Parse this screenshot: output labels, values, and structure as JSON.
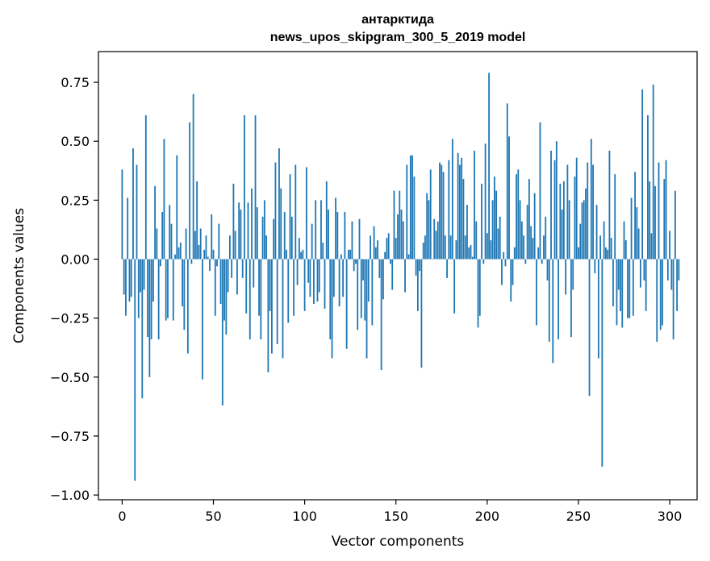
{
  "chart_data": {
    "type": "bar",
    "title": "антарктида",
    "subtitle": "news_upos_skipgram_300_5_2019 model",
    "xlabel": "Vector components",
    "ylabel": "Components values",
    "xlim": [
      -13,
      315
    ],
    "ylim": [
      -1.02,
      0.88
    ],
    "xticks": [
      0,
      50,
      100,
      150,
      200,
      250,
      300
    ],
    "xtick_labels": [
      "0",
      "50",
      "100",
      "150",
      "200",
      "250",
      "300"
    ],
    "yticks": [
      -1.0,
      -0.75,
      -0.5,
      -0.25,
      0.0,
      0.25,
      0.5,
      0.75
    ],
    "ytick_labels": [
      "−1.00",
      "−0.75",
      "−0.50",
      "−0.25",
      "0.00",
      "0.25",
      "0.50",
      "0.75"
    ],
    "grid": false,
    "color": "#1f77b4",
    "values": [
      0.38,
      -0.15,
      -0.24,
      0.26,
      -0.18,
      -0.16,
      0.47,
      -0.94,
      0.4,
      -0.25,
      -0.14,
      -0.59,
      -0.13,
      0.61,
      -0.33,
      -0.5,
      -0.34,
      -0.18,
      0.31,
      0.13,
      -0.34,
      -0.03,
      0.2,
      0.51,
      -0.26,
      -0.25,
      0.23,
      0.15,
      -0.26,
      0.02,
      0.44,
      0.05,
      0.07,
      -0.2,
      -0.3,
      0.13,
      -0.4,
      0.58,
      -0.02,
      0.7,
      0.12,
      0.33,
      0.06,
      0.13,
      -0.51,
      0.04,
      0.1,
      0.01,
      -0.05,
      0.19,
      0.04,
      -0.24,
      -0.03,
      0.15,
      -0.19,
      -0.62,
      -0.26,
      -0.32,
      -0.14,
      0.1,
      -0.08,
      0.32,
      0.12,
      -0.15,
      0.24,
      0.21,
      -0.08,
      0.61,
      -0.23,
      0.24,
      -0.34,
      0.3,
      -0.12,
      0.61,
      0.22,
      -0.24,
      -0.34,
      0.18,
      0.25,
      0.1,
      -0.48,
      -0.22,
      -0.4,
      0.17,
      0.41,
      -0.36,
      0.47,
      0.3,
      -0.42,
      0.2,
      0.04,
      -0.27,
      0.36,
      0.18,
      -0.24,
      0.4,
      -0.11,
      0.09,
      0.03,
      0.04,
      -0.22,
      0.39,
      -0.1,
      -0.16,
      0.15,
      -0.19,
      0.25,
      -0.18,
      -0.14,
      0.25,
      0.07,
      -0.21,
      0.33,
      0.21,
      -0.34,
      -0.42,
      -0.16,
      0.26,
      0.2,
      -0.2,
      0.02,
      -0.16,
      0.2,
      -0.38,
      0.04,
      0.04,
      0.16,
      -0.05,
      -0.02,
      -0.3,
      0.17,
      -0.25,
      -0.09,
      -0.26,
      -0.42,
      -0.18,
      0.1,
      -0.28,
      0.14,
      0.05,
      0.08,
      -0.08,
      -0.47,
      -0.17,
      0.03,
      0.09,
      0.11,
      -0.02,
      -0.13,
      0.29,
      0.09,
      0.19,
      0.29,
      0.21,
      0.16,
      -0.14,
      0.4,
      0.02,
      0.44,
      0.44,
      0.35,
      -0.07,
      -0.22,
      -0.05,
      -0.46,
      0.07,
      0.1,
      0.28,
      0.25,
      0.38,
      0.0,
      0.17,
      0.12,
      0.16,
      0.41,
      0.4,
      0.37,
      0.1,
      -0.08,
      0.42,
      0.1,
      0.51,
      -0.23,
      0.08,
      0.45,
      0.4,
      0.43,
      0.34,
      0.1,
      0.23,
      0.05,
      0.06,
      0.01,
      0.46,
      0.16,
      -0.29,
      -0.24,
      0.32,
      -0.02,
      0.49,
      0.11,
      0.79,
      0.08,
      0.25,
      0.35,
      0.29,
      0.13,
      0.18,
      -0.11,
      0.03,
      -0.03,
      0.66,
      0.52,
      -0.18,
      -0.11,
      0.05,
      0.36,
      0.38,
      0.25,
      0.16,
      0.1,
      -0.02,
      0.23,
      0.34,
      0.14,
      0.09,
      0.28,
      -0.28,
      0.05,
      0.58,
      -0.02,
      0.1,
      0.18,
      -0.09,
      -0.35,
      0.46,
      -0.44,
      0.42,
      0.5,
      -0.34,
      0.32,
      0.21,
      0.33,
      -0.15,
      0.4,
      0.25,
      -0.33,
      -0.13,
      0.35,
      0.43,
      0.05,
      0.15,
      0.24,
      0.25,
      0.3,
      0.41,
      -0.58,
      0.51,
      0.4,
      -0.06,
      0.23,
      -0.42,
      0.1,
      -0.88,
      0.16,
      0.05,
      0.04,
      0.46,
      0.09,
      -0.2,
      0.36,
      -0.28,
      -0.13,
      -0.22,
      -0.29,
      0.16,
      0.08,
      -0.25,
      -0.25,
      0.26,
      -0.24,
      0.37,
      0.22,
      0.13,
      -0.12,
      0.72,
      -0.09,
      -0.22,
      0.61,
      0.33,
      0.11,
      0.74,
      0.31,
      -0.35,
      0.41,
      -0.3,
      -0.28,
      0.34,
      0.42,
      -0.09,
      0.12,
      -0.13,
      -0.34,
      0.29,
      -0.22,
      -0.09
    ]
  }
}
